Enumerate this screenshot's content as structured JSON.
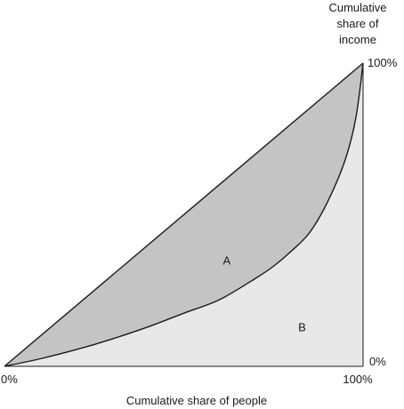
{
  "chart_data": {
    "type": "area",
    "xlabel": "Cumulative share of people",
    "ylabel_lines": [
      "Cumulative",
      "share of",
      "income"
    ],
    "x_ticks": [
      "0%",
      "100%"
    ],
    "y_ticks": [
      "0%",
      "100%"
    ],
    "xlim": [
      0,
      100
    ],
    "ylim": [
      0,
      100
    ],
    "grid": false,
    "series": [
      {
        "role": "line-of-equality",
        "x": [
          0,
          100
        ],
        "y": [
          0,
          100
        ]
      },
      {
        "role": "lorenz-curve",
        "x": [
          0,
          10,
          20,
          30,
          40,
          50,
          60,
          70,
          75,
          80,
          85,
          90,
          95,
          98,
          100
        ],
        "y": [
          0,
          2.5,
          5.5,
          9,
          13,
          17.5,
          22,
          29,
          33,
          38,
          44,
          54,
          68,
          82,
          100
        ]
      }
    ],
    "regions": [
      {
        "label": "A",
        "x": 62,
        "y": 35,
        "fill": "#c4c4c4"
      },
      {
        "label": "B",
        "x": 83,
        "y": 13,
        "fill": "#e8e8e8"
      }
    ],
    "colors": {
      "region_a": "#c4c4c4",
      "region_b": "#e8e8e8",
      "line": "#1a1a1a"
    }
  }
}
